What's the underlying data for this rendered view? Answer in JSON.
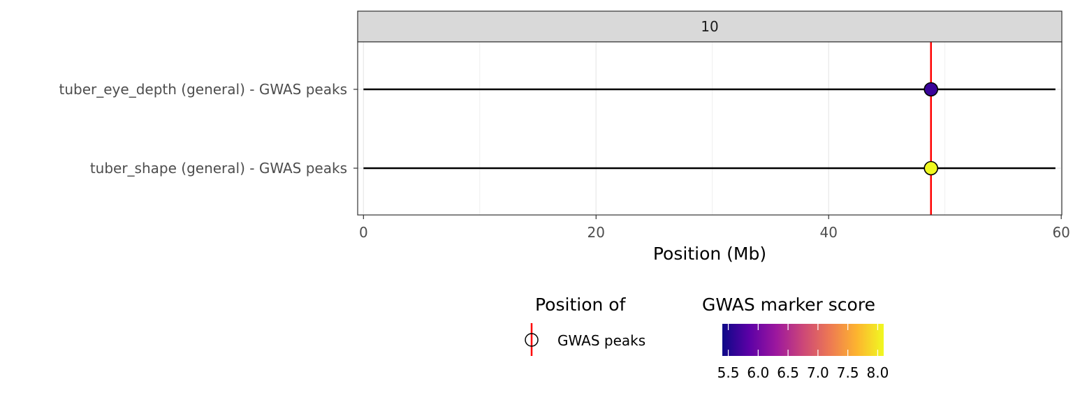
{
  "chart_data": {
    "type": "scatter",
    "panel_label": "10",
    "xlabel": "Position (Mb)",
    "ylabel": "",
    "xlim": [
      0,
      60
    ],
    "x_ticks": [
      0,
      20,
      40,
      60
    ],
    "x_tick_labels": [
      "0",
      "20",
      "40",
      "60"
    ],
    "categories": [
      "tuber_eye_depth (general) - GWAS peaks",
      "tuber_shape (general) - GWAS peaks"
    ],
    "segments": [
      {
        "category": "tuber_eye_depth (general) - GWAS peaks",
        "x_start": 0,
        "x_end": 59.5
      },
      {
        "category": "tuber_shape (general) - GWAS peaks",
        "x_start": 0,
        "x_end": 59.5
      }
    ],
    "points": [
      {
        "category": "tuber_eye_depth (general) - GWAS peaks",
        "x": 48.8,
        "score": 5.5,
        "color": "#3a049a"
      },
      {
        "category": "tuber_shape (general) - GWAS peaks",
        "x": 48.8,
        "score": 8.1,
        "color": "#f0f921"
      }
    ],
    "vline": {
      "x": 48.8,
      "color": "#ff0000"
    },
    "grid": true,
    "legend_position": "bottom",
    "legends": {
      "position_of": {
        "title": "Position of",
        "label": "GWAS peaks"
      },
      "marker_score": {
        "title": "GWAS marker score",
        "ticks": [
          5.5,
          6.0,
          6.5,
          7.0,
          7.5,
          8.0
        ],
        "tick_labels": [
          "5.5",
          "6.0",
          "6.5",
          "7.0",
          "7.5",
          "8.0"
        ],
        "range": [
          5.4,
          8.1
        ],
        "palette": [
          "#0d0887",
          "#5c01a6",
          "#9c179e",
          "#cc4778",
          "#ed7953",
          "#fdb42f",
          "#f0f921"
        ]
      }
    }
  }
}
